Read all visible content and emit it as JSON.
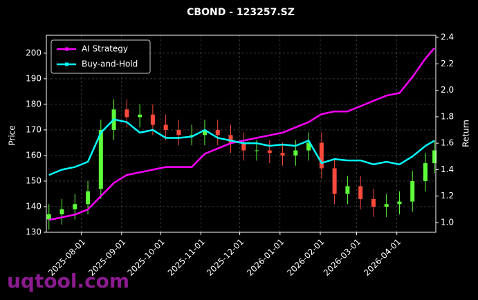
{
  "chart_data": {
    "type": "candlestick",
    "title": "CBOND - 123257.SZ",
    "ylabel": "Price",
    "y2label": "Return",
    "watermark": "uqtool.com",
    "x": [
      "2025-07-07",
      "2025-07-17",
      "2025-07-27",
      "2025-08-06",
      "2025-08-16",
      "2025-08-26",
      "2025-09-05",
      "2025-09-15",
      "2025-09-25",
      "2025-10-05",
      "2025-10-15",
      "2025-10-25",
      "2025-11-04",
      "2025-11-14",
      "2025-11-24",
      "2025-12-04",
      "2025-12-14",
      "2025-12-24",
      "2026-01-03",
      "2026-01-13",
      "2026-01-23",
      "2026-02-02",
      "2026-02-12",
      "2026-02-22",
      "2026-03-04",
      "2026-03-14",
      "2026-03-24",
      "2026-04-03",
      "2026-04-13",
      "2026-04-23",
      "2026-04-30"
    ],
    "open": [
      135,
      137,
      139,
      141,
      147,
      170,
      178,
      175,
      176,
      172,
      170,
      168,
      168,
      170,
      168,
      165,
      162,
      162,
      161,
      160,
      162,
      165,
      155,
      145,
      148,
      143,
      140,
      141,
      142,
      150,
      157
    ],
    "high": [
      141,
      143,
      145,
      150,
      174,
      182,
      182,
      180,
      180,
      176,
      174,
      172,
      174,
      174,
      172,
      169,
      166,
      166,
      165,
      166,
      169,
      169,
      159,
      152,
      152,
      147,
      145,
      146,
      154,
      161,
      166
    ],
    "low": [
      131,
      133,
      135,
      137,
      143,
      166,
      171,
      171,
      168,
      166,
      164,
      164,
      164,
      164,
      161,
      158,
      158,
      157,
      156,
      156,
      158,
      151,
      141,
      141,
      139,
      136,
      136,
      137,
      138,
      146,
      153
    ],
    "close": [
      137,
      139,
      141,
      146,
      170,
      178,
      175,
      176,
      172,
      170,
      168,
      168,
      170,
      168,
      165,
      162,
      162,
      161,
      160,
      162,
      165,
      155,
      145,
      148,
      143,
      140,
      141,
      142,
      150,
      157,
      162
    ],
    "up_color": "#5dff3a",
    "down_color": "#ff4a3a",
    "series": [
      {
        "name": "AI Strategy",
        "color": "#ff00ff",
        "axis": "y2",
        "values": [
          1.02,
          1.04,
          1.06,
          1.1,
          1.2,
          1.3,
          1.36,
          1.38,
          1.4,
          1.42,
          1.42,
          1.42,
          1.52,
          1.56,
          1.6,
          1.62,
          1.64,
          1.66,
          1.68,
          1.72,
          1.76,
          1.82,
          1.84,
          1.84,
          1.88,
          1.92,
          1.96,
          1.98,
          2.1,
          2.24,
          2.32
        ]
      },
      {
        "name": "Buy-and-Hold",
        "color": "#00ffff",
        "axis": "y2",
        "values": [
          1.36,
          1.4,
          1.42,
          1.46,
          1.68,
          1.78,
          1.76,
          1.68,
          1.7,
          1.64,
          1.64,
          1.65,
          1.7,
          1.64,
          1.62,
          1.6,
          1.6,
          1.58,
          1.59,
          1.58,
          1.62,
          1.45,
          1.48,
          1.47,
          1.47,
          1.44,
          1.46,
          1.44,
          1.5,
          1.58,
          1.62
        ]
      }
    ],
    "xlim": [
      "2025-07-05",
      "2026-05-01"
    ],
    "xticks": [
      "2025-08-01",
      "2025-09-01",
      "2025-10-01",
      "2025-11-01",
      "2025-12-01",
      "2026-01-01",
      "2026-02-01",
      "2026-03-01",
      "2026-04-01"
    ],
    "ylim": [
      130,
      207
    ],
    "yticks": [
      130,
      140,
      150,
      160,
      170,
      180,
      190,
      200
    ],
    "y2lim": [
      0.927,
      2.416
    ],
    "y2ticks": [
      1.0,
      1.2,
      1.4,
      1.6,
      1.8,
      2.0,
      2.2,
      2.4
    ],
    "grid": true,
    "legend": "upper left"
  }
}
